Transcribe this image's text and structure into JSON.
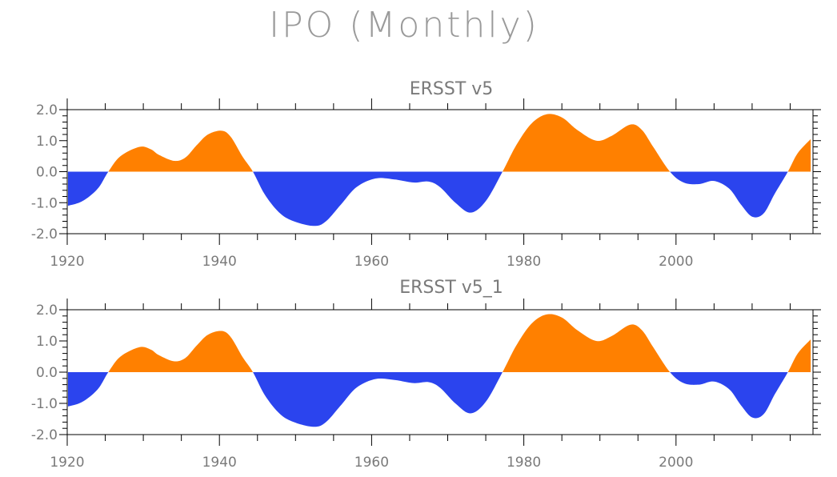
{
  "title": "IPO (Monthly)",
  "colors": {
    "positive": "#ff8000",
    "negative": "#2b44ee",
    "frame": "#000000",
    "text": "#7a7a7a"
  },
  "chart_data": [
    {
      "type": "area",
      "title": "ERSST v5",
      "xlim": [
        1920,
        2018
      ],
      "ylim": [
        -2.0,
        2.0
      ],
      "xticks": [
        1920,
        1940,
        1960,
        1980,
        2000
      ],
      "xtick_labels": [
        "1920",
        "1940",
        "1960",
        "1980",
        "2000"
      ],
      "yticks": [
        2.0,
        1.0,
        0.0,
        -1.0,
        -2.0
      ],
      "ytick_labels": [
        "2.0",
        "1.0",
        "0.0",
        "-1.0",
        "-2.0"
      ],
      "fill_above_zero": "positive",
      "fill_below_zero": "negative",
      "x": [
        1920.1,
        1922,
        1924,
        1925.4,
        1927,
        1929.5,
        1931,
        1932,
        1934,
        1935.5,
        1937,
        1938.5,
        1940.3,
        1941.5,
        1943,
        1944.4,
        1946,
        1948,
        1950,
        1952.5,
        1954,
        1956,
        1958,
        1960.5,
        1963,
        1965.5,
        1967.5,
        1969,
        1971,
        1973,
        1975,
        1977.2,
        1979,
        1981,
        1983,
        1985,
        1987,
        1989.5,
        1991.5,
        1994,
        1995.5,
        1997,
        1999.2,
        2001,
        2003,
        2005,
        2007,
        2008.5,
        2010,
        2011.5,
        2013,
        2014.7,
        2016,
        2017.7
      ],
      "series": [
        {
          "values": [
            -1.1,
            -0.95,
            -0.55,
            0.0,
            0.5,
            0.8,
            0.72,
            0.55,
            0.35,
            0.45,
            0.85,
            1.2,
            1.32,
            1.12,
            0.5,
            0.0,
            -0.75,
            -1.35,
            -1.62,
            -1.75,
            -1.6,
            -1.05,
            -0.5,
            -0.22,
            -0.25,
            -0.35,
            -0.32,
            -0.5,
            -1.0,
            -1.32,
            -0.95,
            0.0,
            0.85,
            1.55,
            1.85,
            1.75,
            1.35,
            1.0,
            1.15,
            1.52,
            1.35,
            0.8,
            0.0,
            -0.35,
            -0.4,
            -0.3,
            -0.55,
            -1.05,
            -1.45,
            -1.35,
            -0.7,
            0.0,
            0.6,
            1.05
          ]
        }
      ]
    },
    {
      "type": "area",
      "title": "ERSST v5_1",
      "xlim": [
        1920,
        2018
      ],
      "ylim": [
        -2.0,
        2.0
      ],
      "xticks": [
        1920,
        1940,
        1960,
        1980,
        2000
      ],
      "xtick_labels": [
        "1920",
        "1940",
        "1960",
        "1980",
        "2000"
      ],
      "yticks": [
        2.0,
        1.0,
        0.0,
        -1.0,
        -2.0
      ],
      "ytick_labels": [
        "2.0",
        "1.0",
        "0.0",
        "-1.0",
        "-2.0"
      ],
      "fill_above_zero": "positive",
      "fill_below_zero": "negative",
      "x": [
        1920.1,
        1922,
        1924,
        1925.4,
        1927,
        1929.5,
        1931,
        1932,
        1934,
        1935.5,
        1937,
        1938.5,
        1940.3,
        1941.5,
        1943,
        1944.4,
        1946,
        1948,
        1950,
        1952.5,
        1954,
        1956,
        1958,
        1960.5,
        1963,
        1965.5,
        1967.5,
        1969,
        1971,
        1973,
        1975,
        1977.2,
        1979,
        1981,
        1983,
        1985,
        1987,
        1989.5,
        1991.5,
        1994,
        1995.5,
        1997,
        1999.2,
        2001,
        2003,
        2005,
        2007,
        2008.5,
        2010,
        2011.5,
        2013,
        2014.7,
        2016,
        2017.7
      ],
      "series": [
        {
          "values": [
            -1.1,
            -0.95,
            -0.55,
            0.0,
            0.5,
            0.8,
            0.72,
            0.55,
            0.35,
            0.45,
            0.85,
            1.2,
            1.32,
            1.12,
            0.5,
            0.0,
            -0.75,
            -1.35,
            -1.62,
            -1.75,
            -1.6,
            -1.05,
            -0.5,
            -0.22,
            -0.25,
            -0.35,
            -0.32,
            -0.5,
            -1.0,
            -1.32,
            -0.95,
            0.0,
            0.85,
            1.55,
            1.85,
            1.75,
            1.35,
            1.0,
            1.15,
            1.52,
            1.35,
            0.8,
            0.0,
            -0.35,
            -0.4,
            -0.3,
            -0.55,
            -1.05,
            -1.45,
            -1.35,
            -0.7,
            0.0,
            0.6,
            1.05
          ]
        }
      ]
    }
  ]
}
